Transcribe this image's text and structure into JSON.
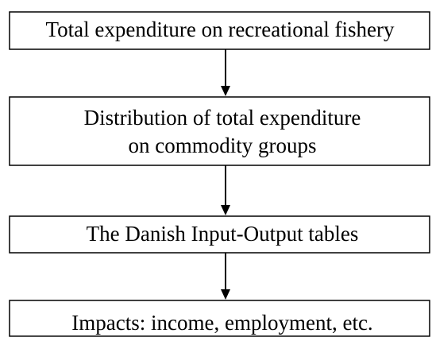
{
  "nodes": [
    {
      "lines": [
        "Total expenditure on recreational fishery"
      ]
    },
    {
      "lines": [
        "Distribution of total expenditure",
        "on commodity groups"
      ]
    },
    {
      "lines": [
        "The Danish Input-Output tables"
      ]
    },
    {
      "lines": [
        "Impacts: income, employment, etc."
      ]
    }
  ]
}
